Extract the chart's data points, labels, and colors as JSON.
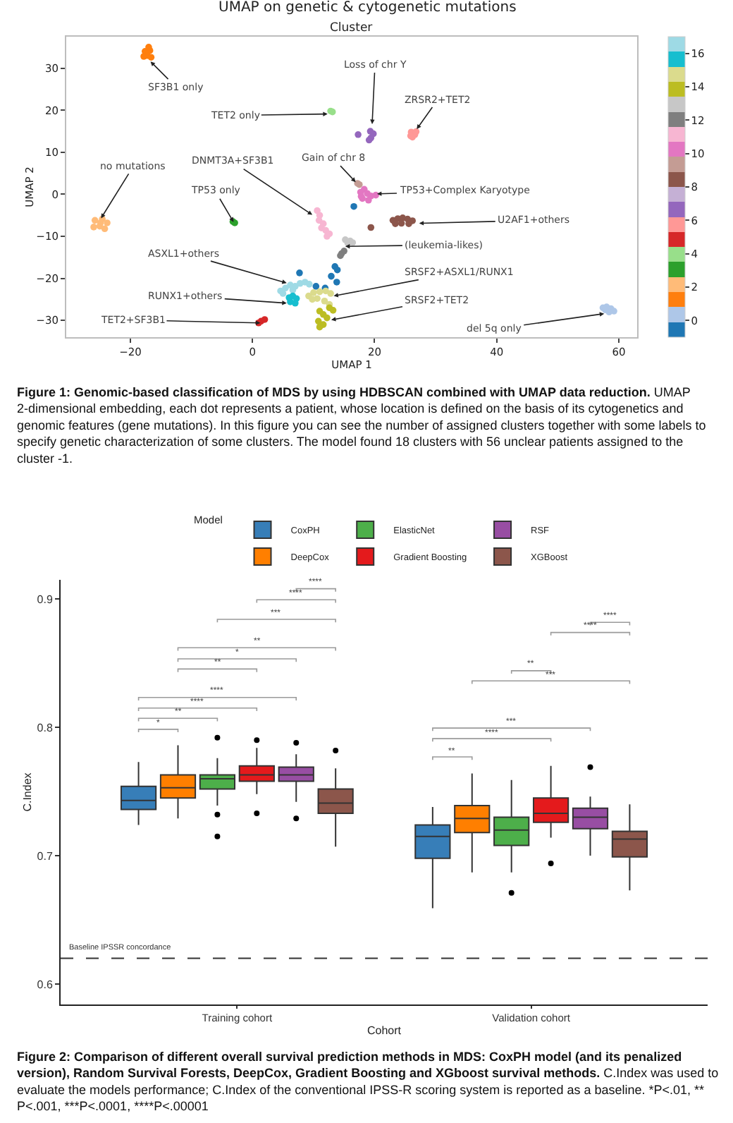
{
  "chart_data": [
    {
      "type": "scatter",
      "title": "UMAP on genetic & cytogenetic mutations",
      "subtitle": "Cluster",
      "xlabel": "UMAP 1",
      "ylabel": "UMAP 2",
      "marker": "circle",
      "x": [
        -17.6,
        -16.8,
        -17.2,
        -16.6,
        -17.8,
        -17.0,
        12.8,
        13.1,
        17.3,
        19.3,
        19.8,
        19.4,
        19.1,
        26.0,
        26.6,
        26.2,
        26.8,
        25.9,
        -25.8,
        -24.6,
        -23.8,
        -25.0,
        -26.0,
        -24.2,
        -24.9,
        -2.9,
        -3.2,
        10.6,
        11.0,
        10.9,
        11.6,
        11.3,
        12.0,
        12.6,
        12.2,
        17.5,
        17.2,
        17.7,
        18.3,
        18.8,
        19.4,
        20.2,
        18.0,
        19.0,
        17.8,
        16.6,
        13.5,
        13.9,
        7.7,
        12.9,
        13.8,
        10.4,
        11.9,
        19.4,
        23.0,
        23.8,
        24.6,
        25.4,
        26.2,
        25.6,
        24.4,
        23.4,
        15.2,
        16.0,
        16.4,
        15.6,
        14.6,
        15.0,
        14.4,
        4.6,
        5.4,
        6.2,
        7.0,
        7.8,
        8.6,
        9.3,
        5.0,
        6.6,
        6.0,
        6.6,
        7.2,
        6.2,
        7.0,
        9.2,
        10.0,
        11.0,
        12.0,
        12.8,
        10.6,
        11.8,
        12.6,
        9.8,
        11.0,
        12.6,
        13.2,
        11.6,
        12.2,
        10.8,
        11.6,
        11.0,
        1.4,
        2.0,
        1.0,
        57.4,
        58.0,
        58.7,
        59.2,
        58.4,
        57.8
      ],
      "values": [
        34.0,
        34.2,
        33.0,
        32.6,
        32.8,
        35.0,
        19.8,
        19.6,
        14.2,
        15.0,
        14.4,
        13.4,
        12.9,
        14.8,
        14.2,
        13.6,
        14.9,
        13.9,
        -6.2,
        -5.9,
        -6.8,
        -7.6,
        -7.8,
        -8.2,
        -6.8,
        -6.8,
        -6.5,
        -3.9,
        -5.0,
        -6.2,
        -7.0,
        -8.0,
        -8.6,
        -9.4,
        -10.0,
        2.3,
        2.6,
        0.5,
        1.2,
        0.2,
        -0.4,
        -0.2,
        -1.0,
        -1.4,
        -0.5,
        -2.9,
        -17.2,
        -18.0,
        -18.7,
        -19.5,
        -20.9,
        -21.9,
        -22.3,
        -7.9,
        -6.2,
        -5.8,
        -5.6,
        -5.9,
        -6.3,
        -7.0,
        -6.9,
        -7.0,
        -10.8,
        -11.1,
        -11.5,
        -11.6,
        -14.1,
        -13.5,
        -14.6,
        -23.0,
        -22.3,
        -21.6,
        -21.9,
        -21.2,
        -20.9,
        -21.4,
        -23.6,
        -22.8,
        -24.6,
        -24.2,
        -24.8,
        -25.6,
        -25.9,
        -24.2,
        -23.4,
        -23.2,
        -23.0,
        -23.6,
        -24.8,
        -25.4,
        -26.2,
        -25.0,
        -27.8,
        -27.0,
        -27.6,
        -28.6,
        -29.4,
        -30.2,
        -31.0,
        -31.6,
        -30.2,
        -29.8,
        -30.6,
        -27.0,
        -26.8,
        -27.2,
        -27.8,
        -28.0,
        -27.5
      ],
      "cvalues": [
        1,
        1,
        1,
        1,
        1,
        1,
        4,
        4,
        7,
        7,
        7,
        7,
        7,
        6,
        6,
        6,
        6,
        6,
        2,
        2,
        2,
        2,
        2,
        2,
        2,
        3,
        3,
        11,
        11,
        11,
        11,
        11,
        11,
        11,
        11,
        9,
        9,
        10,
        10,
        10,
        10,
        10,
        10,
        10,
        10,
        -1,
        -1,
        -1,
        -1,
        -1,
        -1,
        -1,
        -1,
        8,
        8,
        8,
        8,
        8,
        8,
        8,
        8,
        8,
        13,
        13,
        13,
        13,
        12,
        12,
        12,
        17,
        17,
        17,
        17,
        17,
        17,
        17,
        17,
        17,
        16,
        16,
        16,
        16,
        16,
        15,
        15,
        15,
        15,
        15,
        15,
        15,
        15,
        15,
        14,
        14,
        14,
        14,
        14,
        14,
        14,
        14,
        5,
        5,
        5,
        0,
        0,
        0,
        0,
        0,
        0
      ],
      "clim": [
        -1,
        17
      ],
      "cticks": [
        0,
        2,
        4,
        6,
        8,
        10,
        12,
        14,
        16
      ],
      "xlim": [
        -30.5,
        63
      ],
      "xticks": [
        -20,
        0,
        20,
        40,
        60
      ],
      "ylim": [
        -34,
        37.5
      ],
      "yticks": [
        -30,
        -20,
        -10,
        0,
        10,
        20,
        30
      ],
      "annotations": [
        {
          "text": "SF3B1 only",
          "x": -16.7,
          "y": 31.6
        },
        {
          "text": "TET2 only",
          "x": 12.3,
          "y": 19.1
        },
        {
          "text": "Loss of chr Y",
          "x": 19.6,
          "y": 16.7
        },
        {
          "text": "ZRSR2+TET2",
          "x": 26.9,
          "y": 15.5
        },
        {
          "text": "no mutations",
          "x": -24.8,
          "y": -5.7
        },
        {
          "text": "DNMT3A+SF3B1",
          "x": 9.8,
          "y": -4.9
        },
        {
          "text": "Gain of chr 8",
          "x": 16.9,
          "y": 2.9
        },
        {
          "text": "TP53 only",
          "x": -3.1,
          "y": -6.6
        },
        {
          "text": "TP53+Complex Karyotype",
          "x": 20.4,
          "y": 0.1
        },
        {
          "text": "U2AF1+others",
          "x": 27.3,
          "y": -6.9
        },
        {
          "text": "(leukemia-likes)",
          "x": 15.2,
          "y": -12.4
        },
        {
          "text": "ASXL1+others",
          "x": 5.6,
          "y": -21.1
        },
        {
          "text": "SRSF2+ASXL1/RUNX1",
          "x": 13.3,
          "y": -24.2
        },
        {
          "text": "RUNX1+others",
          "x": 5.6,
          "y": -25.9
        },
        {
          "text": "SRSF2+TET2",
          "x": 12.9,
          "y": -29.9
        },
        {
          "text": "TET2+SF3B1",
          "x": 1.3,
          "y": -30.6
        },
        {
          "text": "del 5q only",
          "x": 57.6,
          "y": -28.4
        },
        "Figure 1: Genomic-based classification of MDS by using HDBSCAN combined with UMAP data reduction.",
        "UMAP 2-dimensional embedding, each dot represents a patient, whose location is defined on the basis of its cytogenetics and genomic features (gene mutations). In this figure you can see the number of assigned clusters together with some labels to specify genetic characterization of some clusters. The model found 18 clusters with 56 unclear patients assigned to the cluster -1."
      ]
    },
    {
      "type": "box",
      "categories": [
        "Training cohort",
        "Validation cohort"
      ],
      "xlabel": "Cohort",
      "ylabel": "C.Index",
      "legend_title": "Model",
      "legend": "top",
      "series": [
        {
          "name": "CoxPH",
          "color": "#377eb8",
          "boxes": [
            {
              "low": 0.724,
              "q1": 0.736,
              "median": 0.743,
              "q3": 0.754,
              "high": 0.773
            },
            {
              "low": 0.659,
              "q1": 0.698,
              "median": 0.715,
              "q3": 0.724,
              "high": 0.738
            }
          ]
        },
        {
          "name": "DeepCox",
          "color": "#ff7f00",
          "boxes": [
            {
              "low": 0.729,
              "q1": 0.745,
              "median": 0.753,
              "q3": 0.763,
              "high": 0.786
            },
            {
              "low": 0.687,
              "q1": 0.718,
              "median": 0.729,
              "q3": 0.739,
              "high": 0.764
            }
          ]
        },
        {
          "name": "ElasticNet",
          "color": "#4daf4a",
          "boxes": [
            {
              "low": 0.739,
              "q1": 0.752,
              "median": 0.76,
              "q3": 0.763,
              "high": 0.776,
              "outliers": [
                0.792,
                0.732,
                0.715
              ]
            },
            {
              "low": 0.687,
              "q1": 0.708,
              "median": 0.72,
              "q3": 0.73,
              "high": 0.759,
              "outliers": [
                0.671
              ]
            }
          ]
        },
        {
          "name": "Gradient Boosting",
          "color": "#e41a1c",
          "boxes": [
            {
              "low": 0.748,
              "q1": 0.758,
              "median": 0.763,
              "q3": 0.77,
              "high": 0.784,
              "outliers": [
                0.79,
                0.733
              ]
            },
            {
              "low": 0.714,
              "q1": 0.726,
              "median": 0.733,
              "q3": 0.745,
              "high": 0.77,
              "outliers": [
                0.694
              ]
            }
          ]
        },
        {
          "name": "RSF",
          "color": "#984ea3",
          "boxes": [
            {
              "low": 0.742,
              "q1": 0.758,
              "median": 0.763,
              "q3": 0.769,
              "high": 0.779,
              "outliers": [
                0.788,
                0.729
              ]
            },
            {
              "low": 0.7,
              "q1": 0.721,
              "median": 0.73,
              "q3": 0.737,
              "high": 0.746,
              "outliers": [
                0.769
              ]
            }
          ]
        },
        {
          "name": "XGBoost",
          "color": "#8c564b",
          "boxes": [
            {
              "low": 0.707,
              "q1": 0.733,
              "median": 0.741,
              "q3": 0.752,
              "high": 0.768,
              "outliers": [
                0.782
              ]
            },
            {
              "low": 0.673,
              "q1": 0.699,
              "median": 0.713,
              "q3": 0.719,
              "high": 0.74
            }
          ]
        }
      ],
      "ylim": [
        0.584,
        0.915
      ],
      "yticks": [
        0.6,
        0.7,
        0.8,
        0.9
      ],
      "ref_lines": [
        {
          "axis": "y",
          "value": 0.62,
          "label": "Baseline IPSSR concordance",
          "line_style": "dashed",
          "color": "#333333"
        }
      ],
      "annotations": [
        "****",
        "****",
        "***",
        "**",
        "*",
        "**",
        "****",
        "****",
        "**",
        "*",
        "****",
        "****",
        "**",
        "***",
        "***",
        "****",
        "**",
        "Figure 2: Comparison of different overall survival prediction methods in MDS: CoxPH model (and its penalized version), Random Survival Forests, DeepCox, Gradient Boosting and XGboost survival methods.",
        "C.Index was used to evaluate the models performance; C.Index of the conventional IPSS-R scoring system is reported as a baseline. *P<.01, ** P<.001, ***P<.0001, ****P<.00001"
      ]
    }
  ]
}
